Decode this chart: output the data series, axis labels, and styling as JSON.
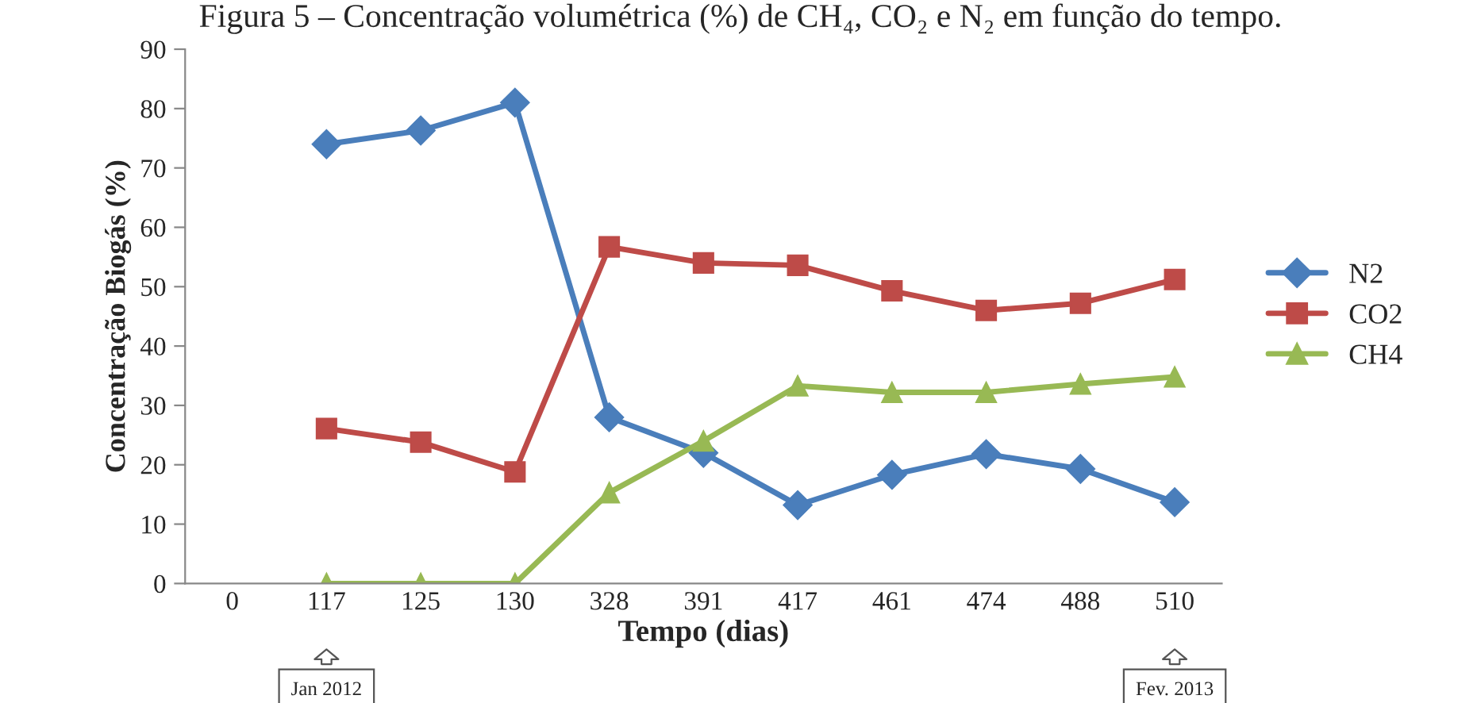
{
  "chart_data": {
    "type": "line",
    "title": "Figura 5 – Concentração volumétrica (%) de CH₄, CO₂ e N₂ em função do tempo.",
    "xlabel": "Tempo (dias)",
    "ylabel": "Concentração Biogás (%)",
    "categories": [
      "0",
      "117",
      "125",
      "130",
      "328",
      "391",
      "417",
      "461",
      "474",
      "488",
      "510"
    ],
    "series": [
      {
        "name": "N2",
        "color": "#4a7ebb",
        "marker": "diamond",
        "values": [
          null,
          74,
          76.3,
          81,
          28,
          22,
          13.2,
          18.3,
          21.8,
          19.3,
          13.7
        ]
      },
      {
        "name": "CO2",
        "color": "#be4b48",
        "marker": "square",
        "values": [
          null,
          26.1,
          23.8,
          18.8,
          56.7,
          54,
          53.6,
          49.3,
          46,
          47.2,
          51.2
        ]
      },
      {
        "name": "CH4",
        "color": "#98b954",
        "marker": "triangle",
        "values": [
          null,
          0,
          0,
          0,
          15.3,
          24,
          33.3,
          32.2,
          32.2,
          33.6,
          34.8
        ]
      }
    ],
    "ylim": [
      0,
      90
    ],
    "yticks": [
      0,
      10,
      20,
      30,
      40,
      50,
      60,
      70,
      80,
      90
    ],
    "grid": false,
    "legend": "right",
    "line_style": "solid",
    "annotations": [
      "Jan 2012",
      "Fev. 2013"
    ]
  }
}
